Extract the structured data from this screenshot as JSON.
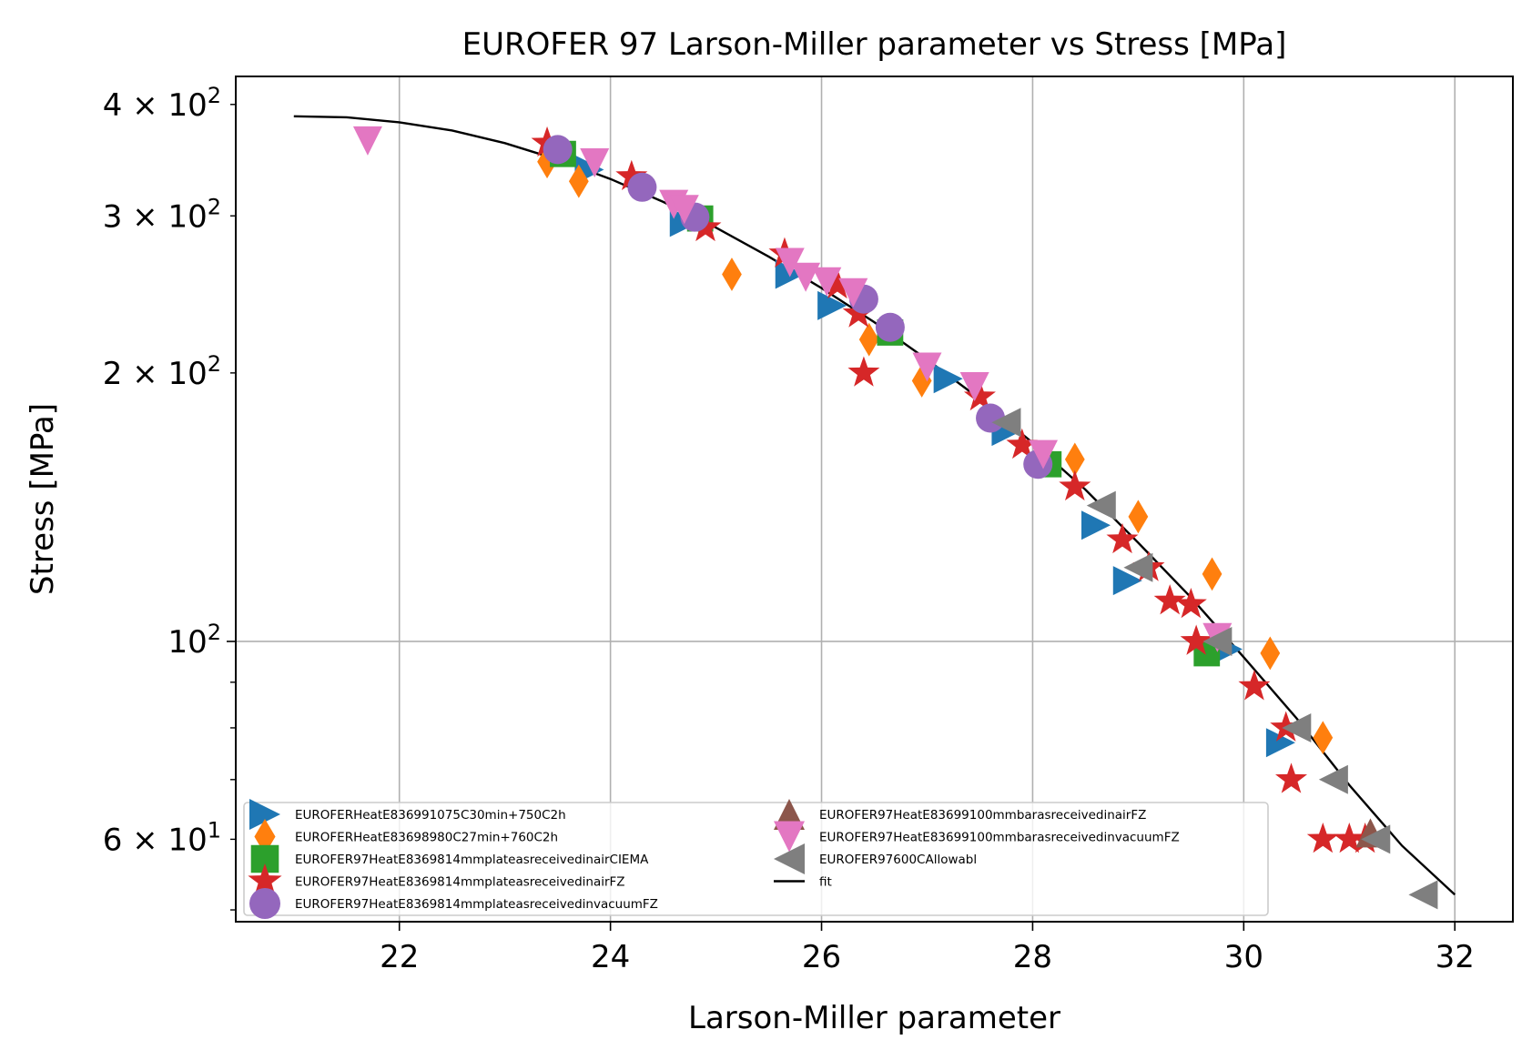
{
  "chart_data": {
    "type": "scatter",
    "title": "EUROFER 97 Larson-Miller parameter vs Stress [MPa]",
    "xlabel": "Larson-Miller parameter",
    "ylabel": "Stress [MPa]",
    "xlim": [
      20.45,
      32.55
    ],
    "ylim": [
      48.5,
      430
    ],
    "yscale": "log",
    "grid": true,
    "legend_position": "lower-left",
    "legend_columns": 2,
    "x_ticks": [
      {
        "value": 22,
        "label": "22"
      },
      {
        "value": 24,
        "label": "24"
      },
      {
        "value": 26,
        "label": "26"
      },
      {
        "value": 28,
        "label": "28"
      },
      {
        "value": 30,
        "label": "30"
      },
      {
        "value": 32,
        "label": "32"
      }
    ],
    "y_major_ticks": [
      {
        "value": 100,
        "base": "10",
        "exp": "2"
      }
    ],
    "y_minor_ticks": [
      {
        "value": 60,
        "mant": "6",
        "base": "10",
        "exp": "1"
      },
      {
        "value": 200,
        "mant": "2",
        "base": "10",
        "exp": "2"
      },
      {
        "value": 300,
        "mant": "3",
        "base": "10",
        "exp": "2"
      },
      {
        "value": 400,
        "mant": "4",
        "base": "10",
        "exp": "2"
      }
    ],
    "y_minor_unlabeled": [
      50,
      70,
      80,
      90
    ],
    "series": [
      {
        "name": "EUROFERHeatE836991075C30min+750C2h",
        "marker": "triangle-right",
        "color": "#1f77b4",
        "points": [
          [
            23.8,
            338
          ],
          [
            24.7,
            295
          ],
          [
            25.7,
            258
          ],
          [
            26.1,
            238
          ],
          [
            27.2,
            197
          ],
          [
            27.75,
            172
          ],
          [
            28.6,
            135
          ],
          [
            28.9,
            117
          ],
          [
            29.85,
            98
          ],
          [
            30.35,
            77
          ]
        ]
      },
      {
        "name": "EUROFERHeatE83698980C27min+760C2h",
        "marker": "thin-diamond",
        "color": "#ff7f0e",
        "points": [
          [
            23.4,
            345
          ],
          [
            23.7,
            328
          ],
          [
            25.15,
            258
          ],
          [
            26.45,
            218
          ],
          [
            26.95,
            196
          ],
          [
            28.4,
            160
          ],
          [
            29.0,
            138
          ],
          [
            29.7,
            119
          ],
          [
            30.25,
            97
          ],
          [
            30.75,
            78
          ]
        ]
      },
      {
        "name": "EUROFER97HeatE8369814mmplateasreceivedinairCIEMA",
        "marker": "square",
        "color": "#2ca02c",
        "points": [
          [
            23.55,
            352
          ],
          [
            24.85,
            298
          ],
          [
            26.65,
            222
          ],
          [
            28.15,
            158
          ],
          [
            29.65,
            97
          ]
        ]
      },
      {
        "name": "EUROFER97HeatE8369814mmplateasreceivedinairFZ",
        "marker": "star",
        "color": "#d62728",
        "points": [
          [
            23.4,
            362
          ],
          [
            24.2,
            332
          ],
          [
            24.9,
            291
          ],
          [
            25.65,
            272
          ],
          [
            26.15,
            251
          ],
          [
            26.35,
            233
          ],
          [
            26.4,
            200
          ],
          [
            27.5,
            188
          ],
          [
            27.9,
            166
          ],
          [
            28.4,
            149
          ],
          [
            28.85,
            130
          ],
          [
            29.1,
            121
          ],
          [
            29.3,
            111
          ],
          [
            29.5,
            110
          ],
          [
            29.55,
            100
          ],
          [
            30.1,
            89
          ],
          [
            30.4,
            80
          ],
          [
            30.45,
            70
          ],
          [
            30.75,
            60
          ],
          [
            31.0,
            60
          ],
          [
            31.15,
            60
          ]
        ]
      },
      {
        "name": "EUROFER97HeatE8369814mmplateasreceivedinvacuumFZ",
        "marker": "circle",
        "color": "#9467bd",
        "points": [
          [
            23.5,
            356
          ],
          [
            24.3,
            323
          ],
          [
            24.8,
            299
          ],
          [
            26.4,
            242
          ],
          [
            26.65,
            225
          ],
          [
            27.6,
            178
          ],
          [
            28.05,
            158
          ]
        ]
      },
      {
        "name": "EUROFER97HeatE83699100mmbarasreceivedinairFZ",
        "marker": "triangle-up",
        "color": "#8c564b",
        "points": [
          [
            31.2,
            61
          ]
        ]
      },
      {
        "name": "EUROFER97HeatE83699100mmbarasreceivedinvacuumFZ",
        "marker": "triangle-down",
        "color": "#e377c2",
        "points": [
          [
            21.7,
            364
          ],
          [
            23.85,
            344
          ],
          [
            24.6,
            309
          ],
          [
            24.7,
            305
          ],
          [
            25.7,
            266
          ],
          [
            25.85,
            256
          ],
          [
            26.05,
            253
          ],
          [
            26.3,
            246
          ],
          [
            27.0,
            203
          ],
          [
            27.45,
            193
          ],
          [
            28.1,
            162
          ],
          [
            29.75,
            101
          ]
        ]
      },
      {
        "name": "EUROFER97600CAllowabl",
        "marker": "triangle-left",
        "color": "#7f7f7f",
        "points": [
          [
            27.75,
            176
          ],
          [
            28.65,
            142
          ],
          [
            29.0,
            121
          ],
          [
            29.75,
            100
          ],
          [
            30.5,
            80
          ],
          [
            30.85,
            70
          ],
          [
            31.25,
            60
          ],
          [
            31.7,
            52
          ]
        ]
      }
    ],
    "fit": {
      "name": "fit",
      "color": "#000000",
      "points": [
        [
          21.0,
          388
        ],
        [
          21.5,
          387
        ],
        [
          22.0,
          382
        ],
        [
          22.5,
          374
        ],
        [
          23.0,
          362
        ],
        [
          23.5,
          347
        ],
        [
          24.0,
          330
        ],
        [
          24.5,
          311
        ],
        [
          25.0,
          291
        ],
        [
          25.5,
          270
        ],
        [
          26.0,
          249
        ],
        [
          26.5,
          228
        ],
        [
          27.0,
          207
        ],
        [
          27.5,
          187
        ],
        [
          28.0,
          167
        ],
        [
          28.5,
          148
        ],
        [
          29.0,
          129
        ],
        [
          29.5,
          112
        ],
        [
          30.0,
          96
        ],
        [
          30.5,
          82
        ],
        [
          31.0,
          69
        ],
        [
          31.5,
          59
        ],
        [
          32.0,
          52
        ]
      ]
    }
  }
}
